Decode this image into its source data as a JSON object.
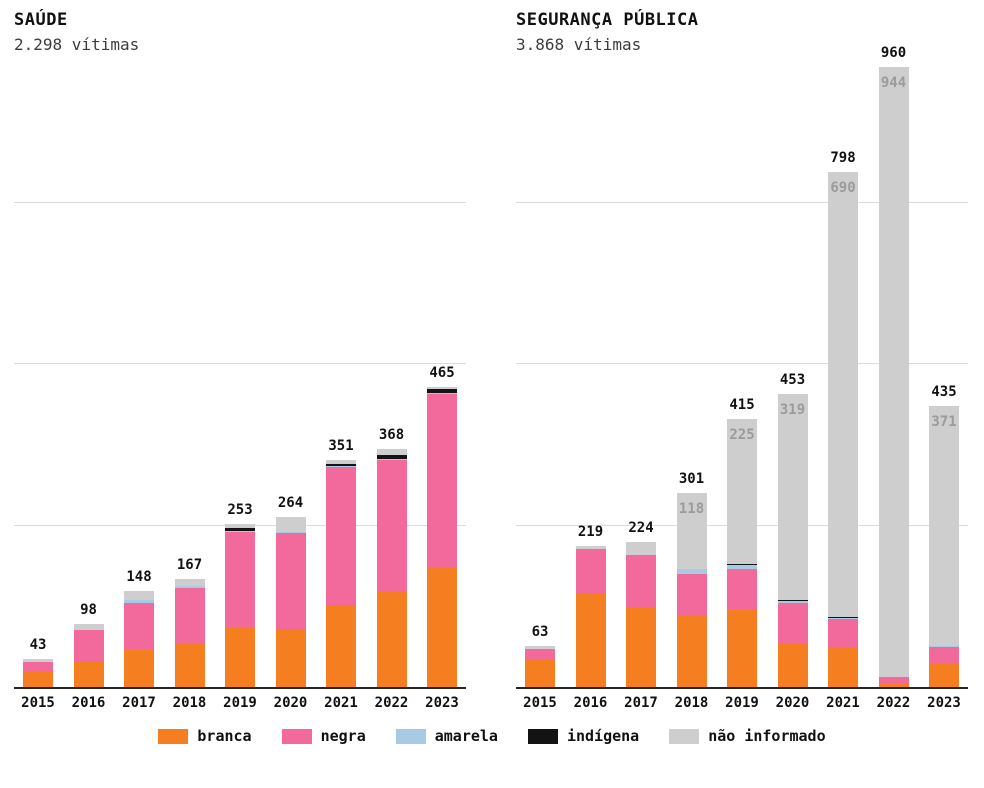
{
  "legend": {
    "items": [
      {
        "label": "branca",
        "color": "#f57e20"
      },
      {
        "label": "negra",
        "color": "#f2699c"
      },
      {
        "label": "amarela",
        "color": "#a8cbe4"
      },
      {
        "label": "indígena",
        "color": "#131313"
      },
      {
        "label": "não informado",
        "color": "#cecece"
      }
    ]
  },
  "chart_data": [
    {
      "type": "bar",
      "variant": "stacked",
      "title": "SAÚDE",
      "subtitle": "2.298 vítimas",
      "categories": [
        "2015",
        "2016",
        "2017",
        "2018",
        "2019",
        "2020",
        "2021",
        "2022",
        "2023"
      ],
      "totals": [
        43,
        98,
        148,
        167,
        253,
        264,
        351,
        368,
        465
      ],
      "series": [
        {
          "name": "branca",
          "color": "#f57e20",
          "values": [
            25,
            38,
            58,
            68,
            93,
            90,
            125,
            148,
            185
          ]
        },
        {
          "name": "negra",
          "color": "#f2699c",
          "values": [
            13,
            50,
            72,
            86,
            147,
            149,
            216,
            203,
            269
          ]
        },
        {
          "name": "amarela",
          "color": "#a8cbe4",
          "values": [
            0,
            1,
            4,
            2,
            2,
            1,
            2,
            2,
            2
          ]
        },
        {
          "name": "indígena",
          "color": "#131313",
          "values": [
            0,
            0,
            0,
            0,
            4,
            0,
            3,
            7,
            5
          ]
        },
        {
          "name": "não informado",
          "color": "#cecece",
          "values": [
            5,
            9,
            14,
            11,
            7,
            24,
            5,
            8,
            4
          ]
        }
      ],
      "inbar_labels": [
        null,
        null,
        null,
        null,
        null,
        null,
        null,
        null,
        null
      ],
      "gridlines": [
        250,
        500,
        750
      ],
      "ylim": [
        0,
        960
      ],
      "grid": true,
      "legend_position": "bottom"
    },
    {
      "type": "bar",
      "variant": "stacked",
      "title": "SEGURANÇA PÚBLICA",
      "subtitle": "3.868 vítimas",
      "categories": [
        "2015",
        "2016",
        "2017",
        "2018",
        "2019",
        "2020",
        "2021",
        "2022",
        "2023"
      ],
      "totals": [
        63,
        219,
        224,
        301,
        415,
        453,
        798,
        960,
        435
      ],
      "series": [
        {
          "name": "branca",
          "color": "#f57e20",
          "values": [
            43,
            146,
            123,
            111,
            119,
            66,
            62,
            4,
            36
          ]
        },
        {
          "name": "negra",
          "color": "#f2699c",
          "values": [
            16,
            67,
            81,
            64,
            63,
            64,
            43,
            12,
            26
          ]
        },
        {
          "name": "amarela",
          "color": "#a8cbe4",
          "values": [
            0,
            1,
            1,
            7,
            7,
            3,
            2,
            0,
            2
          ]
        },
        {
          "name": "indígena",
          "color": "#131313",
          "values": [
            0,
            0,
            0,
            1,
            1,
            1,
            1,
            0,
            0
          ]
        },
        {
          "name": "não informado",
          "color": "#cecece",
          "values": [
            4,
            5,
            19,
            118,
            225,
            319,
            690,
            944,
            371
          ]
        }
      ],
      "inbar_labels": [
        null,
        null,
        null,
        118,
        225,
        319,
        690,
        944,
        371
      ],
      "gridlines": [
        250,
        500,
        750
      ],
      "ylim": [
        0,
        960
      ],
      "grid": true,
      "legend_position": "bottom"
    }
  ]
}
